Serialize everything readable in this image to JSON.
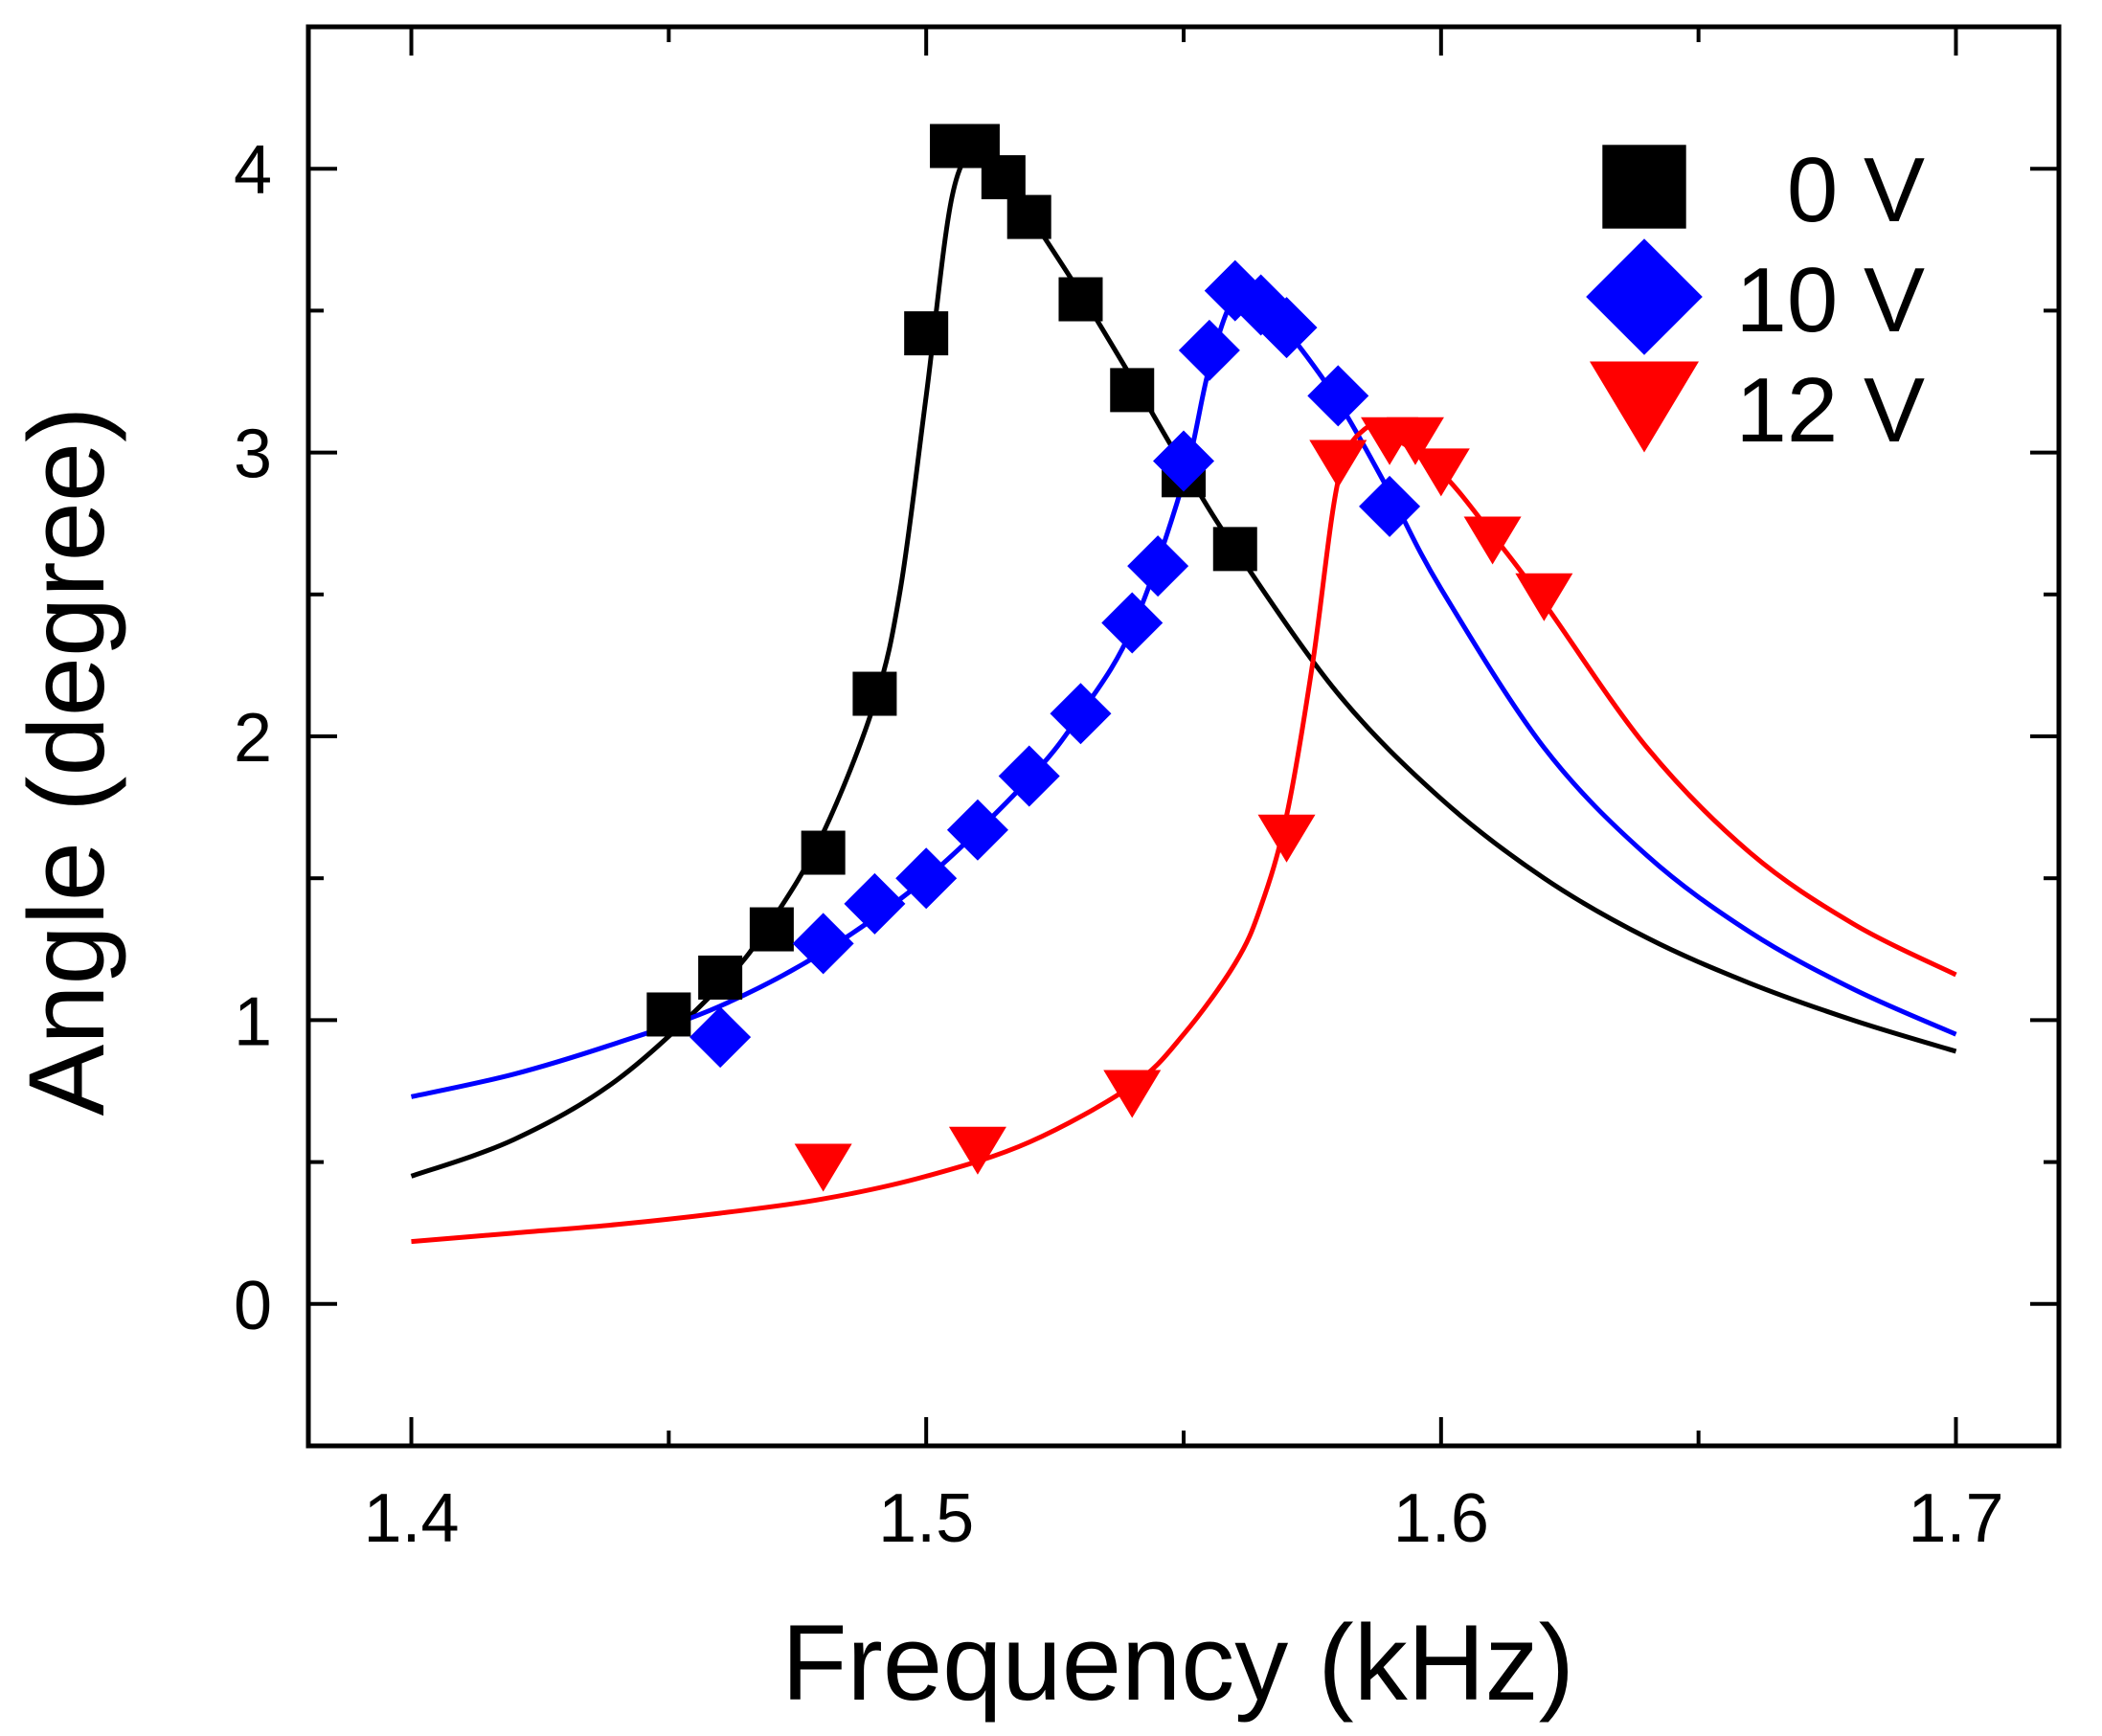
{
  "chart_data": {
    "type": "scatter",
    "title": "",
    "xlabel": "Frequency (kHz)",
    "ylabel": "Angle (degree)",
    "xlim": [
      1.38,
      1.72
    ],
    "ylim": [
      -0.5,
      4.5
    ],
    "xticks": [
      1.4,
      1.5,
      1.6,
      1.7
    ],
    "xtick_labels": [
      "1.4",
      "1.5",
      "1.6",
      "1.7"
    ],
    "xminor": [
      1.45,
      1.55,
      1.65
    ],
    "yticks": [
      0,
      1,
      2,
      3,
      4
    ],
    "ytick_labels": [
      "0",
      "1",
      "2",
      "3",
      "4"
    ],
    "yminor": [
      0.5,
      1.5,
      2.5,
      3.5
    ],
    "grid": false,
    "legend_position": "top-right",
    "series": [
      {
        "name": "0 V",
        "label": "0 V",
        "color": "#000000",
        "marker": "square",
        "points": [
          [
            1.45,
            1.02
          ],
          [
            1.46,
            1.15
          ],
          [
            1.47,
            1.32
          ],
          [
            1.48,
            1.59
          ],
          [
            1.49,
            2.15
          ],
          [
            1.5,
            3.42
          ],
          [
            1.505,
            4.08
          ],
          [
            1.51,
            4.08
          ],
          [
            1.515,
            3.97
          ],
          [
            1.52,
            3.83
          ],
          [
            1.53,
            3.54
          ],
          [
            1.54,
            3.22
          ],
          [
            1.55,
            2.92
          ],
          [
            1.56,
            2.66
          ]
        ],
        "fit": [
          [
            1.4,
            0.45
          ],
          [
            1.42,
            0.58
          ],
          [
            1.44,
            0.79
          ],
          [
            1.46,
            1.12
          ],
          [
            1.47,
            1.35
          ],
          [
            1.48,
            1.66
          ],
          [
            1.49,
            2.12
          ],
          [
            1.495,
            2.52
          ],
          [
            1.5,
            3.2
          ],
          [
            1.505,
            3.9
          ],
          [
            1.51,
            4.07
          ],
          [
            1.515,
            3.98
          ],
          [
            1.52,
            3.84
          ],
          [
            1.53,
            3.56
          ],
          [
            1.54,
            3.26
          ],
          [
            1.55,
            2.95
          ],
          [
            1.56,
            2.66
          ],
          [
            1.58,
            2.15
          ],
          [
            1.6,
            1.78
          ],
          [
            1.62,
            1.5
          ],
          [
            1.64,
            1.29
          ],
          [
            1.66,
            1.13
          ],
          [
            1.68,
            1.0
          ],
          [
            1.7,
            0.89
          ]
        ]
      },
      {
        "name": "10 V",
        "label": "10 V",
        "color": "#0000ff",
        "marker": "diamond",
        "points": [
          [
            1.46,
            0.94
          ],
          [
            1.48,
            1.27
          ],
          [
            1.49,
            1.41
          ],
          [
            1.5,
            1.5
          ],
          [
            1.51,
            1.67
          ],
          [
            1.52,
            1.86
          ],
          [
            1.53,
            2.08
          ],
          [
            1.54,
            2.4
          ],
          [
            1.545,
            2.6
          ],
          [
            1.55,
            2.97
          ],
          [
            1.555,
            3.36
          ],
          [
            1.56,
            3.57
          ],
          [
            1.565,
            3.52
          ],
          [
            1.57,
            3.44
          ],
          [
            1.58,
            3.2
          ],
          [
            1.59,
            2.81
          ]
        ],
        "fit": [
          [
            1.4,
            0.73
          ],
          [
            1.42,
            0.81
          ],
          [
            1.44,
            0.92
          ],
          [
            1.46,
            1.05
          ],
          [
            1.48,
            1.24
          ],
          [
            1.5,
            1.5
          ],
          [
            1.52,
            1.85
          ],
          [
            1.53,
            2.08
          ],
          [
            1.54,
            2.38
          ],
          [
            1.55,
            2.9
          ],
          [
            1.555,
            3.3
          ],
          [
            1.56,
            3.55
          ],
          [
            1.565,
            3.52
          ],
          [
            1.57,
            3.43
          ],
          [
            1.58,
            3.18
          ],
          [
            1.59,
            2.86
          ],
          [
            1.6,
            2.52
          ],
          [
            1.62,
            1.96
          ],
          [
            1.64,
            1.58
          ],
          [
            1.66,
            1.31
          ],
          [
            1.68,
            1.11
          ],
          [
            1.7,
            0.95
          ]
        ]
      },
      {
        "name": "12 V",
        "label": "12 V",
        "color": "#ff0000",
        "marker": "triangle-down",
        "points": [
          [
            1.48,
            0.48
          ],
          [
            1.51,
            0.54
          ],
          [
            1.54,
            0.74
          ],
          [
            1.57,
            1.64
          ],
          [
            1.58,
            2.96
          ],
          [
            1.59,
            3.04
          ],
          [
            1.595,
            3.04
          ],
          [
            1.6,
            2.93
          ],
          [
            1.61,
            2.69
          ],
          [
            1.62,
            2.49
          ]
        ],
        "fit": [
          [
            1.4,
            0.22
          ],
          [
            1.42,
            0.25
          ],
          [
            1.44,
            0.28
          ],
          [
            1.46,
            0.32
          ],
          [
            1.48,
            0.37
          ],
          [
            1.5,
            0.45
          ],
          [
            1.52,
            0.57
          ],
          [
            1.54,
            0.77
          ],
          [
            1.55,
            0.95
          ],
          [
            1.56,
            1.2
          ],
          [
            1.565,
            1.4
          ],
          [
            1.57,
            1.72
          ],
          [
            1.575,
            2.25
          ],
          [
            1.58,
            2.9
          ],
          [
            1.585,
            3.08
          ],
          [
            1.59,
            3.06
          ],
          [
            1.6,
            2.93
          ],
          [
            1.61,
            2.71
          ],
          [
            1.62,
            2.47
          ],
          [
            1.64,
            1.96
          ],
          [
            1.66,
            1.59
          ],
          [
            1.68,
            1.34
          ],
          [
            1.7,
            1.16
          ]
        ]
      }
    ]
  }
}
